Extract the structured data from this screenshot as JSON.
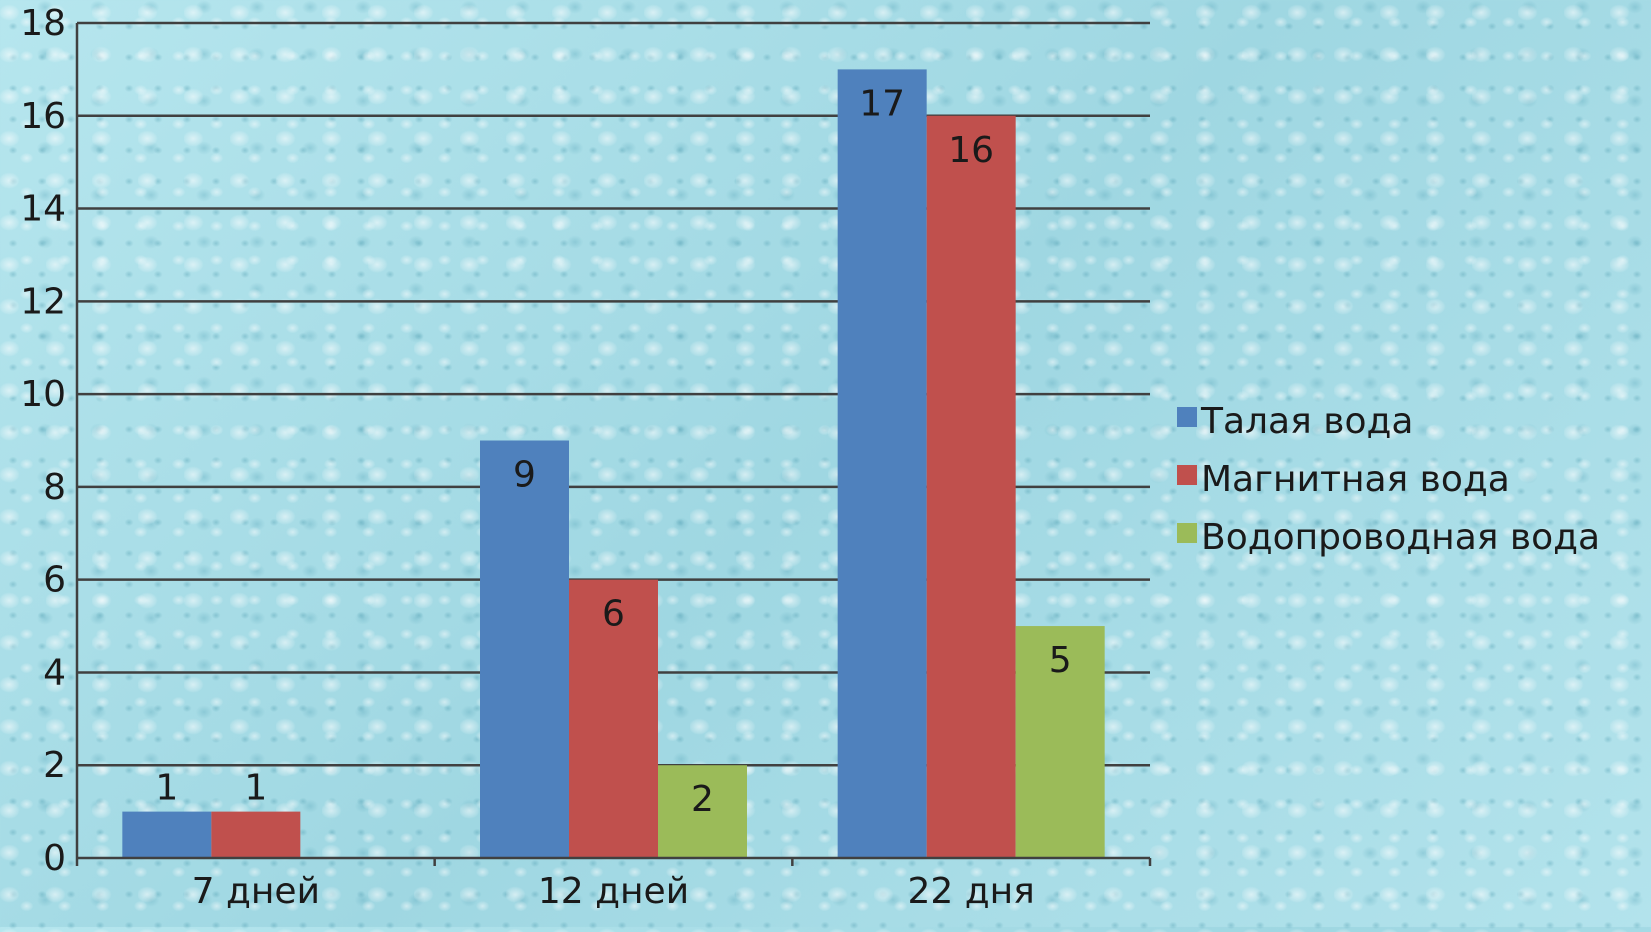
{
  "chart_data": {
    "type": "bar",
    "categories": [
      "7 дней",
      "12 дней",
      "22 дня"
    ],
    "series": [
      {
        "name": "Талая вода",
        "color": "#4f81bd",
        "values": [
          1,
          9,
          17
        ],
        "labels": [
          "1",
          "9",
          "17"
        ]
      },
      {
        "name": "Магнитная вода",
        "color": "#c0504d",
        "values": [
          1,
          6,
          16
        ],
        "labels": [
          "1",
          "6",
          "16"
        ]
      },
      {
        "name": "Водопроводная вода",
        "color": "#9bbb59",
        "values": [
          0,
          2,
          5
        ],
        "labels": [
          "",
          "2",
          "5"
        ]
      }
    ],
    "ylim": [
      0,
      18
    ],
    "yticks": [
      "0",
      "2",
      "4",
      "6",
      "8",
      "10",
      "12",
      "14",
      "16",
      "18"
    ],
    "grid": true,
    "legend": "right"
  }
}
